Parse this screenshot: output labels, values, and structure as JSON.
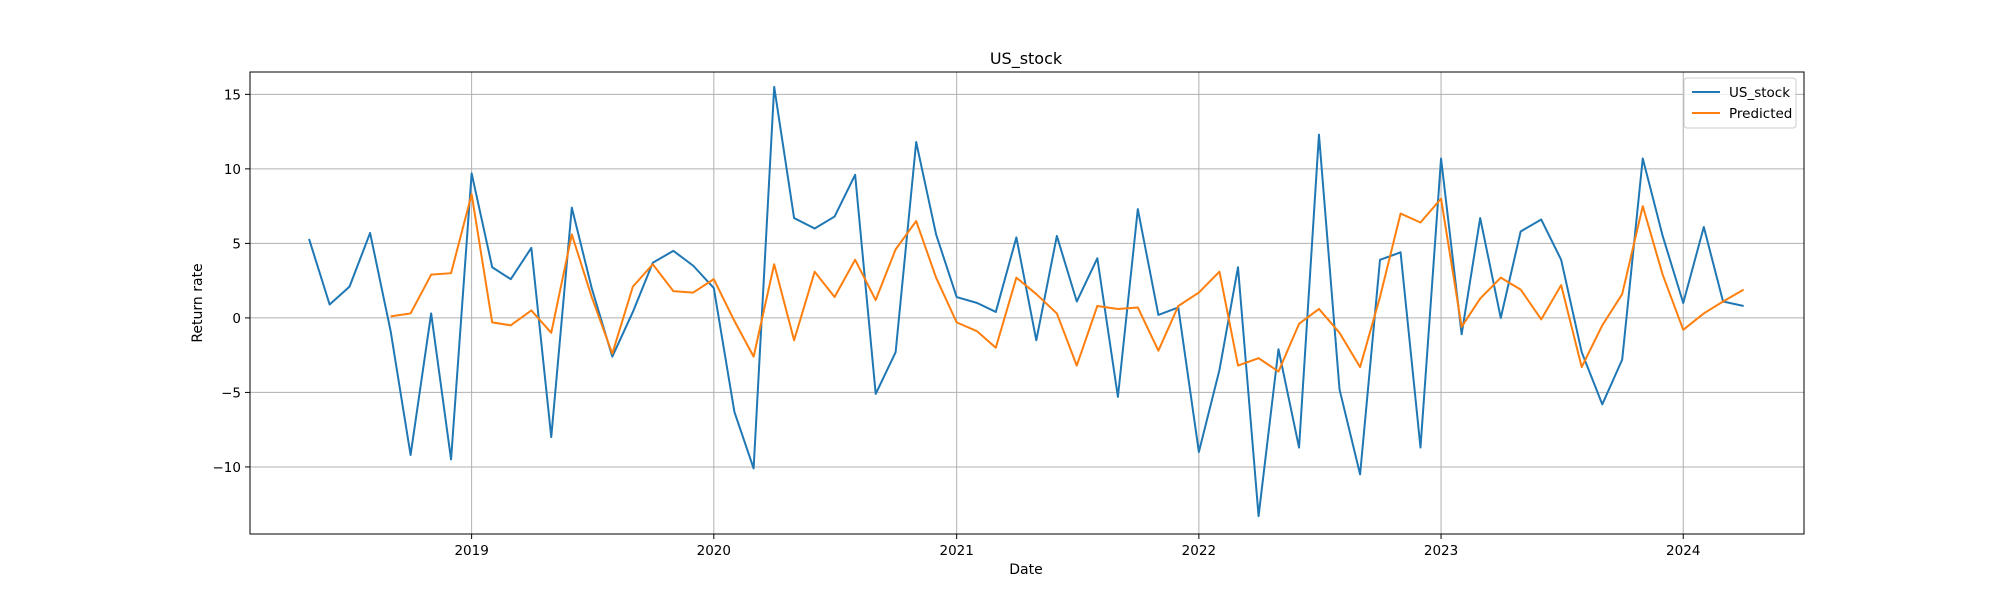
{
  "chart_data": {
    "type": "line",
    "title": "US_stock",
    "xlabel": "Date",
    "ylabel": "Return rate",
    "xlim": [
      "2018-02-01",
      "2024-07-01"
    ],
    "ylim": [
      -14.5,
      16.5
    ],
    "x_ticks": [
      "2019-01-01",
      "2020-01-01",
      "2021-01-01",
      "2022-01-01",
      "2023-01-01",
      "2024-01-01"
    ],
    "x_tick_labels": [
      "2019",
      "2020",
      "2021",
      "2022",
      "2023",
      "2024"
    ],
    "y_ticks": [
      -10,
      -5,
      0,
      5,
      10,
      15
    ],
    "y_tick_labels": [
      "−10",
      "−5",
      "0",
      "5",
      "10",
      "15"
    ],
    "grid": true,
    "legend": "top-right",
    "series": [
      {
        "name": "US_stock",
        "color": "#1f77b4",
        "x": [
          "2018-05",
          "2018-06",
          "2018-07",
          "2018-08",
          "2018-09",
          "2018-10",
          "2018-11",
          "2018-12",
          "2019-01",
          "2019-02",
          "2019-03",
          "2019-04",
          "2019-05",
          "2019-06",
          "2019-07",
          "2019-08",
          "2019-09",
          "2019-10",
          "2019-11",
          "2019-12",
          "2020-01",
          "2020-02",
          "2020-03",
          "2020-04",
          "2020-05",
          "2020-06",
          "2020-07",
          "2020-08",
          "2020-09",
          "2020-10",
          "2020-11",
          "2020-12",
          "2021-01",
          "2021-02",
          "2021-03",
          "2021-04",
          "2021-05",
          "2021-06",
          "2021-07",
          "2021-08",
          "2021-09",
          "2021-10",
          "2021-11",
          "2021-12",
          "2022-01",
          "2022-02",
          "2022-03",
          "2022-04",
          "2022-05",
          "2022-06",
          "2022-07",
          "2022-08",
          "2022-09",
          "2022-10",
          "2022-11",
          "2022-12",
          "2023-01",
          "2023-02",
          "2023-03",
          "2023-04",
          "2023-05",
          "2023-06",
          "2023-07",
          "2023-08",
          "2023-09",
          "2023-10",
          "2023-11",
          "2023-12",
          "2024-01",
          "2024-02",
          "2024-03",
          "2024-04"
        ],
        "values": [
          5.3,
          0.9,
          2.1,
          5.7,
          -0.9,
          -9.2,
          0.3,
          -9.5,
          9.7,
          3.4,
          2.6,
          4.7,
          -8.0,
          7.4,
          2.0,
          -2.6,
          0.4,
          3.7,
          4.5,
          3.5,
          2.0,
          -6.3,
          -10.1,
          15.5,
          6.7,
          6.0,
          6.8,
          9.6,
          -5.1,
          -2.3,
          11.8,
          5.6,
          1.4,
          1.0,
          0.4,
          5.4,
          -1.5,
          5.5,
          1.1,
          4.0,
          -5.3,
          7.3,
          0.2,
          0.7,
          -9.0,
          -3.5,
          3.4,
          -13.3,
          -2.1,
          -8.7,
          12.3,
          -4.8,
          -10.5,
          3.9,
          4.4,
          -8.7,
          10.7,
          -1.1,
          6.7,
          0.0,
          5.8,
          6.6,
          3.9,
          -2.3,
          -5.8,
          -2.8,
          10.7,
          5.5,
          1.0,
          6.1,
          1.1,
          0.8
        ]
      },
      {
        "name": "Predicted",
        "color": "#ff7f0e",
        "x": [
          "2018-09",
          "2018-10",
          "2018-11",
          "2018-12",
          "2019-01",
          "2019-02",
          "2019-03",
          "2019-04",
          "2019-05",
          "2019-06",
          "2019-07",
          "2019-08",
          "2019-09",
          "2019-10",
          "2019-11",
          "2019-12",
          "2020-01",
          "2020-02",
          "2020-03",
          "2020-04",
          "2020-05",
          "2020-06",
          "2020-07",
          "2020-08",
          "2020-09",
          "2020-10",
          "2020-11",
          "2020-12",
          "2021-01",
          "2021-02",
          "2021-03",
          "2021-04",
          "2021-05",
          "2021-06",
          "2021-07",
          "2021-08",
          "2021-09",
          "2021-10",
          "2021-11",
          "2021-12",
          "2022-01",
          "2022-02",
          "2022-03",
          "2022-04",
          "2022-05",
          "2022-06",
          "2022-07",
          "2022-08",
          "2022-09",
          "2022-10",
          "2022-11",
          "2022-12",
          "2023-01",
          "2023-02",
          "2023-03",
          "2023-04",
          "2023-05",
          "2023-06",
          "2023-07",
          "2023-08",
          "2023-09",
          "2023-10",
          "2023-11",
          "2023-12",
          "2024-01",
          "2024-02",
          "2024-03",
          "2024-04"
        ],
        "values": [
          0.1,
          0.3,
          2.9,
          3.0,
          8.3,
          -0.3,
          -0.5,
          0.5,
          -1.0,
          5.6,
          1.4,
          -2.4,
          2.1,
          3.6,
          1.8,
          1.7,
          2.6,
          -0.2,
          -2.6,
          3.6,
          -1.5,
          3.1,
          1.4,
          3.9,
          1.2,
          4.6,
          6.5,
          2.7,
          -0.3,
          -0.9,
          -2.0,
          2.7,
          1.6,
          0.3,
          -3.2,
          0.8,
          0.6,
          0.7,
          -2.2,
          0.8,
          1.7,
          3.1,
          -3.2,
          -2.7,
          -3.6,
          -0.4,
          0.6,
          -1.0,
          -3.3,
          1.4,
          7.0,
          6.4,
          8.0,
          -0.6,
          1.3,
          2.7,
          1.9,
          -0.1,
          2.2,
          -3.3,
          -0.5,
          1.6,
          7.5,
          2.9,
          -0.8,
          0.3,
          1.1,
          1.9
        ]
      }
    ]
  }
}
